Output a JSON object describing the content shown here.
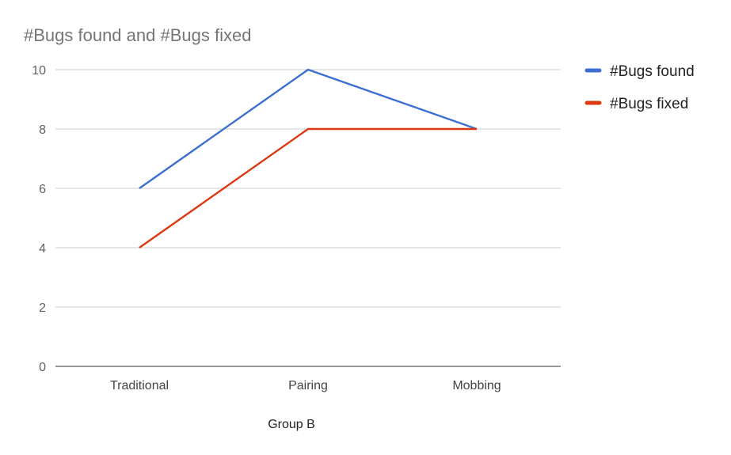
{
  "chart_data": {
    "type": "line",
    "title": "#Bugs found and #Bugs fixed",
    "xlabel": "Group B",
    "ylabel": "",
    "categories": [
      "Traditional",
      "Pairing",
      "Mobbing"
    ],
    "series": [
      {
        "name": "#Bugs found",
        "values": [
          6,
          10,
          8
        ],
        "color": "#3c6fd1"
      },
      {
        "name": "#Bugs fixed",
        "values": [
          4,
          8,
          8
        ],
        "color": "#dc3912"
      }
    ],
    "ylim": [
      0,
      10
    ],
    "yticks": [
      "0",
      "2",
      "4",
      "6",
      "8",
      "10"
    ],
    "grid": true,
    "legend": "right"
  }
}
